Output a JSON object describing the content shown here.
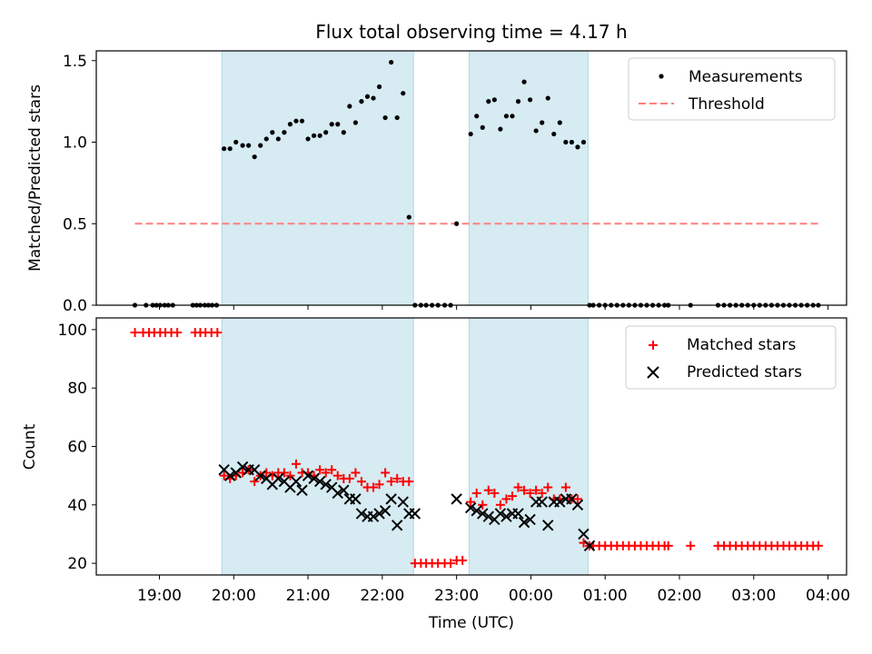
{
  "colors": {
    "shade": "#add8e6",
    "measurement": "#000000",
    "threshold": "#ff7f7f",
    "matched": "#ff0000",
    "predicted": "#000000"
  },
  "chart_data": [
    {
      "type": "scatter",
      "title": "Flux total observing time = 4.17 h",
      "xlabel": "",
      "ylabel": "Matched/Predicted stars",
      "ylim": [
        0,
        1.56
      ],
      "yticks": [
        "0.0",
        "0.5",
        "1.0",
        "1.5"
      ],
      "ytick_values": [
        0,
        0.5,
        1.0,
        1.5
      ],
      "legend": {
        "placement": "top-right",
        "entries": [
          "Measurements",
          "Threshold"
        ]
      },
      "threshold": {
        "name": "Threshold",
        "value": 0.5,
        "x_start": 18.67,
        "x_end": 27.87
      },
      "series": [
        {
          "name": "Measurements",
          "x": [
            18.67,
            18.82,
            18.91,
            18.96,
            19.01,
            19.07,
            19.12,
            19.18,
            19.45,
            19.5,
            19.55,
            19.61,
            19.66,
            19.71,
            19.77,
            19.87,
            19.95,
            20.03,
            20.12,
            20.2,
            20.28,
            20.36,
            20.44,
            20.52,
            20.6,
            20.68,
            20.76,
            20.84,
            20.92,
            21.0,
            21.08,
            21.16,
            21.24,
            21.32,
            21.4,
            21.48,
            21.56,
            21.64,
            21.72,
            21.8,
            21.88,
            21.96,
            22.04,
            22.12,
            22.2,
            22.28,
            22.36,
            22.44,
            22.52,
            22.59,
            22.67,
            22.75,
            22.84,
            22.92,
            23.0,
            23.19,
            23.27,
            23.35,
            23.43,
            23.51,
            23.59,
            23.67,
            23.75,
            23.83,
            23.91,
            23.99,
            24.07,
            24.15,
            24.23,
            24.31,
            24.39,
            24.47,
            24.55,
            24.63,
            24.71,
            24.79,
            24.84,
            24.92,
            25.0,
            25.08,
            25.16,
            25.24,
            25.32,
            25.4,
            25.48,
            25.56,
            25.64,
            25.72,
            25.8,
            25.85,
            26.15,
            26.52,
            26.6,
            26.68,
            26.76,
            26.84,
            26.92,
            27.0,
            27.08,
            27.16,
            27.24,
            27.32,
            27.4,
            27.48,
            27.56,
            27.64,
            27.72,
            27.8,
            27.87
          ],
          "y": [
            0,
            0,
            0,
            0,
            0,
            0,
            0,
            0,
            0,
            0,
            0,
            0,
            0,
            0,
            0,
            0.96,
            0.96,
            1.0,
            0.98,
            0.98,
            0.91,
            0.98,
            1.02,
            1.06,
            1.02,
            1.06,
            1.11,
            1.13,
            1.13,
            1.02,
            1.04,
            1.04,
            1.06,
            1.11,
            1.11,
            1.06,
            1.22,
            1.12,
            1.25,
            1.28,
            1.27,
            1.34,
            1.15,
            1.49,
            1.15,
            1.3,
            0.54,
            0,
            0,
            0,
            0,
            0,
            0,
            0,
            0.5,
            1.05,
            1.16,
            1.09,
            1.25,
            1.26,
            1.08,
            1.16,
            1.16,
            1.25,
            1.37,
            1.26,
            1.07,
            1.12,
            1.27,
            1.05,
            1.12,
            1.0,
            1.0,
            0.97,
            1.0,
            0,
            0,
            0,
            0,
            0,
            0,
            0,
            0,
            0,
            0,
            0,
            0,
            0,
            0,
            0,
            0,
            0,
            0,
            0,
            0,
            0,
            0,
            0,
            0,
            0,
            0,
            0,
            0,
            0,
            0,
            0,
            0,
            0,
            0
          ]
        }
      ]
    },
    {
      "type": "scatter",
      "title": "",
      "xlabel": "Time (UTC)",
      "ylabel": "Count",
      "ylim": [
        16,
        104
      ],
      "yticks": [
        "20",
        "40",
        "60",
        "80",
        "100"
      ],
      "ytick_values": [
        20,
        40,
        60,
        80,
        100
      ],
      "xlim": [
        18.15,
        28.25
      ],
      "xticks": [
        "19:00",
        "20:00",
        "21:00",
        "22:00",
        "23:00",
        "00:00",
        "01:00",
        "02:00",
        "03:00",
        "04:00"
      ],
      "xtick_values": [
        19,
        20,
        21,
        22,
        23,
        24,
        25,
        26,
        27,
        28
      ],
      "legend": {
        "placement": "top-right",
        "entries": [
          "Matched stars",
          "Predicted stars"
        ]
      },
      "series": [
        {
          "name": "Matched stars",
          "x": [
            18.67,
            18.78,
            18.86,
            18.93,
            19.01,
            19.08,
            19.16,
            19.24,
            19.48,
            19.55,
            19.62,
            19.7,
            19.78,
            19.87,
            19.95,
            20.03,
            20.12,
            20.2,
            20.28,
            20.36,
            20.44,
            20.52,
            20.6,
            20.68,
            20.76,
            20.84,
            20.92,
            21.0,
            21.08,
            21.16,
            21.24,
            21.32,
            21.4,
            21.48,
            21.56,
            21.64,
            21.72,
            21.8,
            21.88,
            21.96,
            22.04,
            22.12,
            22.2,
            22.28,
            22.36,
            22.44,
            22.52,
            22.59,
            22.67,
            22.75,
            22.84,
            22.92,
            23.0,
            23.08,
            23.19,
            23.27,
            23.35,
            23.43,
            23.51,
            23.59,
            23.67,
            23.75,
            23.83,
            23.91,
            23.99,
            24.07,
            24.15,
            24.23,
            24.31,
            24.39,
            24.47,
            24.55,
            24.63,
            24.71,
            24.79,
            24.84,
            24.92,
            25.0,
            25.08,
            25.16,
            25.24,
            25.32,
            25.4,
            25.48,
            25.56,
            25.64,
            25.72,
            25.8,
            25.85,
            26.15,
            26.52,
            26.6,
            26.68,
            26.76,
            26.84,
            26.92,
            27.0,
            27.08,
            27.16,
            27.24,
            27.32,
            27.4,
            27.48,
            27.56,
            27.64,
            27.72,
            27.8,
            27.87
          ],
          "y": [
            99,
            99,
            99,
            99,
            99,
            99,
            99,
            99,
            99,
            99,
            99,
            99,
            99,
            50,
            49,
            50,
            51,
            52,
            48,
            50,
            51,
            50,
            51,
            51,
            50,
            54,
            51,
            51,
            50,
            52,
            51,
            52,
            50,
            49,
            49,
            51,
            48,
            46,
            46,
            47,
            51,
            48,
            49,
            48,
            48,
            20,
            20,
            20,
            20,
            20,
            20,
            20,
            21,
            21,
            41,
            44,
            40,
            45,
            44,
            40,
            42,
            43,
            46,
            45,
            44,
            45,
            44,
            46,
            42,
            42,
            46,
            42,
            42,
            27,
            26,
            26,
            26,
            26,
            26,
            26,
            26,
            26,
            26,
            26,
            26,
            26,
            26,
            26,
            26,
            26,
            26,
            26,
            26,
            26,
            26,
            26,
            26,
            26,
            26,
            26,
            26,
            26,
            26,
            26,
            26,
            26,
            26,
            26
          ]
        },
        {
          "name": "Predicted stars",
          "x": [
            19.87,
            19.95,
            20.03,
            20.12,
            20.2,
            20.28,
            20.36,
            20.44,
            20.52,
            20.6,
            20.68,
            20.76,
            20.84,
            20.92,
            21.0,
            21.08,
            21.16,
            21.24,
            21.32,
            21.4,
            21.48,
            21.56,
            21.64,
            21.72,
            21.8,
            21.88,
            21.96,
            22.04,
            22.12,
            22.2,
            22.28,
            22.36,
            22.44,
            23.0,
            23.19,
            23.27,
            23.35,
            23.43,
            23.51,
            23.59,
            23.67,
            23.75,
            23.83,
            23.91,
            23.99,
            24.07,
            24.15,
            24.23,
            24.31,
            24.39,
            24.47,
            24.55,
            24.63,
            24.71,
            24.79
          ],
          "y": [
            52,
            50,
            51,
            53,
            52,
            52,
            50,
            49,
            47,
            49,
            48,
            46,
            48,
            45,
            50,
            49,
            48,
            47,
            46,
            44,
            45,
            42,
            42,
            37,
            36,
            36,
            37,
            38,
            42,
            33,
            41,
            37,
            37,
            42,
            39,
            38,
            37,
            36,
            35,
            37,
            36,
            37,
            37,
            34,
            35,
            41,
            41,
            33,
            41,
            41,
            42,
            42,
            40,
            30,
            26
          ]
        }
      ],
      "shaded_regions": [
        [
          19.84,
          22.42
        ],
        [
          23.17,
          24.77
        ]
      ]
    }
  ]
}
